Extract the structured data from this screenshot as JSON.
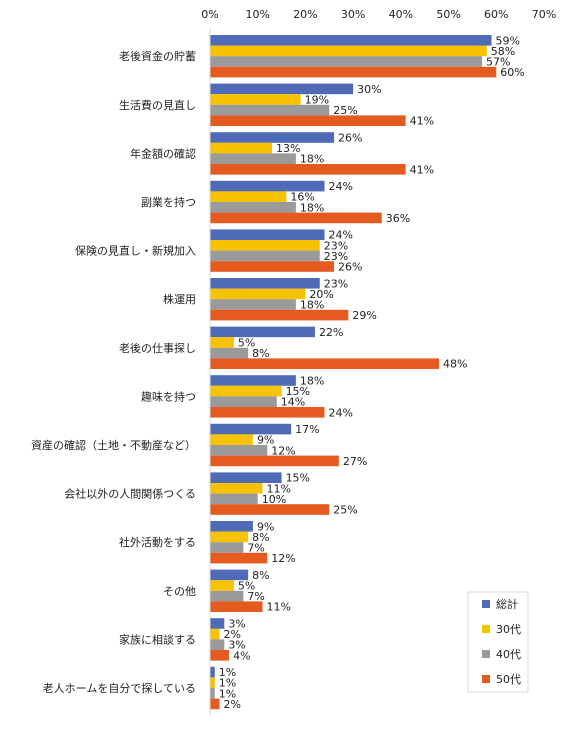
{
  "chart_data": {
    "type": "bar",
    "orientation": "horizontal",
    "xlim": [
      0,
      70
    ],
    "x_ticks": [
      "0%",
      "10%",
      "20%",
      "30%",
      "40%",
      "50%",
      "60%",
      "70%"
    ],
    "x_tick_values": [
      0,
      10,
      20,
      30,
      40,
      50,
      60,
      70
    ],
    "value_suffix": "%",
    "grid": false,
    "legend_position": "bottom-right",
    "categories": [
      "老後資金の貯蓄",
      "生活費の見直し",
      "年金額の確認",
      "副業を持つ",
      "保険の見直し・新規加入",
      "株運用",
      "老後の仕事探し",
      "趣味を持つ",
      "資産の確認（土地・不動産など）",
      "会社以外の人間関係つくる",
      "社外活動をする",
      "その他",
      "家族に相談する",
      "老人ホームを自分で探している"
    ],
    "series": [
      {
        "name": "総計",
        "color": "#4f6ab6",
        "values": [
          59,
          30,
          26,
          24,
          24,
          23,
          22,
          18,
          17,
          15,
          9,
          8,
          3,
          1
        ]
      },
      {
        "name": "30代",
        "color": "#f7c200",
        "values": [
          58,
          19,
          13,
          16,
          23,
          20,
          5,
          15,
          9,
          11,
          8,
          5,
          2,
          1
        ]
      },
      {
        "name": "40代",
        "color": "#9a9a9a",
        "values": [
          57,
          25,
          18,
          18,
          23,
          18,
          8,
          14,
          12,
          10,
          7,
          7,
          3,
          1
        ]
      },
      {
        "name": "50代",
        "color": "#e55a1f",
        "values": [
          60,
          41,
          41,
          36,
          26,
          29,
          48,
          24,
          27,
          25,
          12,
          11,
          4,
          2
        ]
      }
    ]
  }
}
